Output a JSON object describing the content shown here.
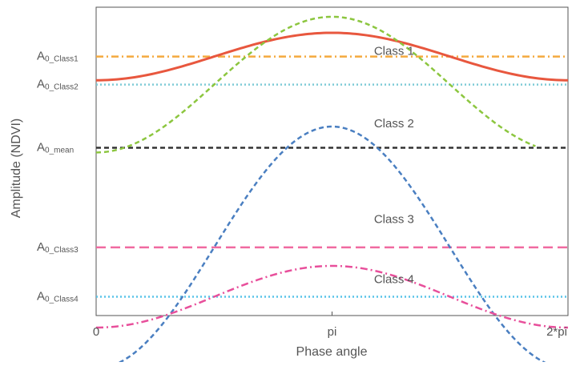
{
  "chart_data": {
    "type": "line",
    "xlabel": "Phase angle",
    "ylabel": "Amplitude (NDVI)",
    "xlim": [
      0,
      6.2832
    ],
    "ylim": [
      0,
      10
    ],
    "x_ticks": [
      {
        "value": 0,
        "label": "0"
      },
      {
        "value": 3.1416,
        "label": "pi"
      },
      {
        "value": 6.2832,
        "label": "2*pi"
      }
    ],
    "y_labels": [
      {
        "key": "a0_class1",
        "main": "A",
        "sub": "0_Class1",
        "value": 8.4
      },
      {
        "key": "a0_class2",
        "main": "A",
        "sub": "0_Class2",
        "value": 7.49
      },
      {
        "key": "a0_mean",
        "main": "A",
        "sub": "0_mean",
        "value": 5.44
      },
      {
        "key": "a0_class3",
        "main": "A",
        "sub": "0_Class3",
        "value": 2.21
      },
      {
        "key": "a0_class4",
        "main": "A",
        "sub": "0_Class4",
        "value": 0.61
      }
    ],
    "series": [
      {
        "name": "Class 1",
        "kind": "cosine",
        "mean": 8.4,
        "amplitude": 0.77,
        "color": "#e8573e",
        "dash": "solid",
        "label_at": [
          3.7,
          8.45
        ]
      },
      {
        "name": "Class 2",
        "kind": "cosine",
        "mean": 7.49,
        "amplitude": 2.2,
        "color": "#8cc63f",
        "dash": "dash",
        "label_at": [
          3.7,
          6.1
        ],
        "x_end": 5.85
      },
      {
        "name": "Class 3",
        "kind": "cosine",
        "mean": 2.21,
        "amplitude": 3.92,
        "color": "#4a7fc1",
        "dash": "dash",
        "label_at": [
          3.7,
          3.0
        ]
      },
      {
        "name": "Class 4",
        "kind": "cosine",
        "mean": 0.61,
        "amplitude": 1.0,
        "color": "#e84f9b",
        "dash": "dashdot",
        "label_at": [
          3.7,
          1.05
        ]
      },
      {
        "name": "",
        "kind": "constant",
        "value": 8.4,
        "color": "#f4a93e",
        "dash": "dashdot"
      },
      {
        "name": "",
        "kind": "constant",
        "value": 7.49,
        "color": "#7fcbd6",
        "dash": "dot"
      },
      {
        "name": "",
        "kind": "constant",
        "value": 5.44,
        "color": "#333333",
        "dash": "dash"
      },
      {
        "name": "",
        "kind": "constant",
        "value": 2.21,
        "color": "#f06aa0",
        "dash": "longdash"
      },
      {
        "name": "",
        "kind": "constant",
        "value": 0.61,
        "color": "#59c4e8",
        "dash": "dot"
      }
    ],
    "grid": false,
    "legend": "none"
  }
}
